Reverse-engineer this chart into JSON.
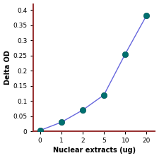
{
  "x_labels": [
    "0",
    "1",
    "2",
    "5",
    "10",
    "20"
  ],
  "x_positions": [
    0,
    1,
    2,
    3,
    4,
    5
  ],
  "y": [
    0.003,
    0.03,
    0.07,
    0.12,
    0.255,
    0.382
  ],
  "line_color": "#6666dd",
  "marker_color": "#007070",
  "marker_edge_color": "#005555",
  "xlabel": "Nuclear extracts (ug)",
  "ylabel": "Delta OD",
  "xlim": [
    -0.3,
    5.4
  ],
  "ylim": [
    0,
    0.42
  ],
  "yticks": [
    0,
    0.05,
    0.1,
    0.15,
    0.2,
    0.25,
    0.3,
    0.35,
    0.4
  ],
  "ytick_labels": [
    "0",
    "0.05",
    "0.1",
    "0.15",
    "0.2",
    "0.25",
    "0.3",
    "0.35",
    "0.4"
  ],
  "background_color": "#ffffff",
  "plot_bg_color": "#ffffff",
  "spine_color": "#993333",
  "label_fontsize": 7,
  "tick_fontsize": 6.5,
  "marker_size": 6,
  "line_width": 1.0
}
